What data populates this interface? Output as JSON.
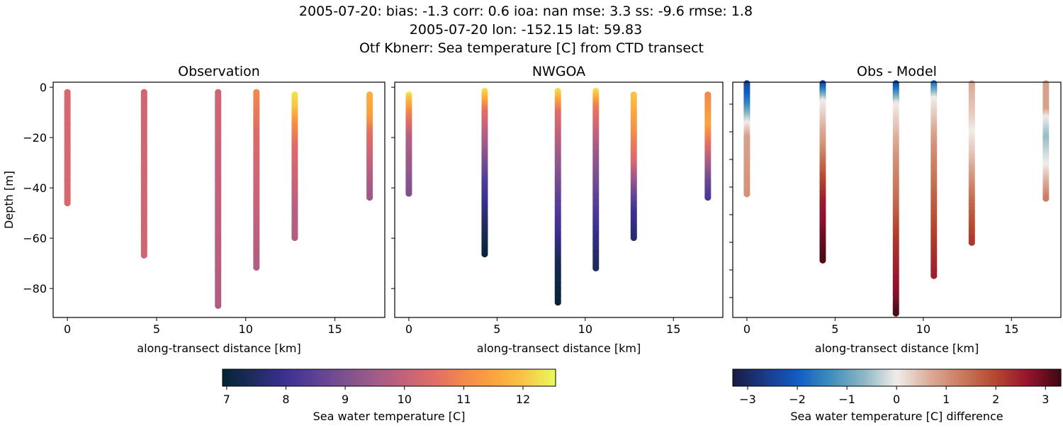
{
  "title_lines": [
    "2005-07-20: bias: -1.3  corr: 0.6  ioa: nan  mse: 3.3  ss: -9.6  rmse: 1.8",
    "2005-07-20 lon: -152.15 lat: 59.83",
    "Otf Kbnerr: Sea temperature [C] from CTD transect"
  ],
  "chart_data": [
    {
      "type": "scatter",
      "title": "Observation",
      "xlabel": "along-transect distance [km]",
      "ylabel": "Depth [m]",
      "xlim": [
        -0.8,
        17.8
      ],
      "ylim": [
        -91.5,
        2
      ],
      "xticks": [
        0,
        5,
        10,
        15
      ],
      "yticks": [
        0,
        -20,
        -40,
        -60,
        -80
      ],
      "show_ytick_labels": true,
      "colormap": "thermal",
      "color_range": [
        6.93,
        12.55
      ],
      "casts": [
        {
          "x": 0,
          "depth_top": -2,
          "depth_bottom": -46.5,
          "profile": [
            [
              -2,
              10.3
            ],
            [
              -46.5,
              10.3
            ]
          ]
        },
        {
          "x": 4.3,
          "depth_top": -2,
          "depth_bottom": -67,
          "profile": [
            [
              -2,
              10.2
            ],
            [
              -67,
              10.2
            ]
          ]
        },
        {
          "x": 8.45,
          "depth_top": -2,
          "depth_bottom": -87,
          "profile": [
            [
              -2,
              10.2
            ],
            [
              -40,
              10.0
            ],
            [
              -87,
              9.7
            ]
          ]
        },
        {
          "x": 10.6,
          "depth_top": -2,
          "depth_bottom": -72,
          "profile": [
            [
              -2,
              11.0
            ],
            [
              -20,
              10.4
            ],
            [
              -50,
              10.0
            ],
            [
              -72,
              9.7
            ]
          ]
        },
        {
          "x": 12.75,
          "depth_top": -3,
          "depth_bottom": -60,
          "profile": [
            [
              -3,
              12.3
            ],
            [
              -8,
              12.0
            ],
            [
              -15,
              11.1
            ],
            [
              -25,
              10.4
            ],
            [
              -50,
              9.8
            ],
            [
              -60,
              9.7
            ]
          ]
        },
        {
          "x": 16.95,
          "depth_top": -3,
          "depth_bottom": -44.5,
          "profile": [
            [
              -3,
              11.7
            ],
            [
              -12,
              11.4
            ],
            [
              -18,
              10.6
            ],
            [
              -30,
              10.0
            ],
            [
              -44.5,
              9.4
            ]
          ]
        }
      ]
    },
    {
      "type": "scatter",
      "title": "NWGOA",
      "xlabel": "along-transect distance [km]",
      "xlim": [
        -0.8,
        17.8
      ],
      "ylim": [
        -91.5,
        2
      ],
      "xticks": [
        0,
        5,
        10,
        15
      ],
      "yticks": [
        0,
        -20,
        -40,
        -60,
        -80
      ],
      "show_ytick_labels": false,
      "colormap": "thermal",
      "color_range": [
        6.93,
        12.55
      ],
      "casts": [
        {
          "x": 0,
          "depth_top": -3,
          "depth_bottom": -42.5,
          "profile": [
            [
              -3,
              12.3
            ],
            [
              -10,
              11.0
            ],
            [
              -20,
              9.8
            ],
            [
              -42.5,
              9.0
            ]
          ]
        },
        {
          "x": 4.3,
          "depth_top": -1.5,
          "depth_bottom": -67,
          "profile": [
            [
              -1.5,
              12.3
            ],
            [
              -10,
              10.5
            ],
            [
              -25,
              9.3
            ],
            [
              -38,
              8.3
            ],
            [
              -50,
              7.7
            ],
            [
              -67,
              7.0
            ]
          ]
        },
        {
          "x": 8.45,
          "depth_top": -1.5,
          "depth_bottom": -86,
          "profile": [
            [
              -1.5,
              12.3
            ],
            [
              -10,
              10.5
            ],
            [
              -30,
              9.3
            ],
            [
              -45,
              8.5
            ],
            [
              -58,
              8.0
            ],
            [
              -70,
              7.3
            ],
            [
              -86,
              7.0
            ]
          ]
        },
        {
          "x": 10.6,
          "depth_top": -1.5,
          "depth_bottom": -72,
          "profile": [
            [
              -1.5,
              12.3
            ],
            [
              -8,
              10.8
            ],
            [
              -25,
              9.5
            ],
            [
              -45,
              8.5
            ],
            [
              -60,
              7.8
            ],
            [
              -72,
              7.4
            ]
          ]
        },
        {
          "x": 12.75,
          "depth_top": -3,
          "depth_bottom": -60,
          "profile": [
            [
              -3,
              12.0
            ],
            [
              -15,
              11.3
            ],
            [
              -30,
              10.3
            ],
            [
              -40,
              9.0
            ],
            [
              -50,
              8.0
            ],
            [
              -60,
              7.6
            ]
          ]
        },
        {
          "x": 16.95,
          "depth_top": -3,
          "depth_bottom": -44.5,
          "profile": [
            [
              -3,
              11.0
            ],
            [
              -15,
              11.5
            ],
            [
              -25,
              10.3
            ],
            [
              -35,
              9.0
            ],
            [
              -44.5,
              8.2
            ]
          ]
        }
      ]
    },
    {
      "type": "scatter",
      "title": "Obs - Model",
      "xlabel": "along-transect distance [km]",
      "xlim": [
        -0.8,
        17.8
      ],
      "ylim": [
        -87.2,
        -2.05
      ],
      "xticks": [
        0,
        5,
        10,
        15
      ],
      "yticks": [
        -10,
        -20,
        -30,
        -40,
        -50,
        -60,
        -70,
        -80
      ],
      "show_ytick_labels": false,
      "colormap": "balance",
      "color_range": [
        -3.3,
        3.31
      ],
      "casts": [
        {
          "x": 0,
          "depth_top": -2.5,
          "depth_bottom": -42.6,
          "profile": [
            [
              -2.5,
              -2.5
            ],
            [
              -10,
              -1.5
            ],
            [
              -17,
              0
            ],
            [
              -22,
              0.8
            ],
            [
              -42.6,
              1.0
            ]
          ]
        },
        {
          "x": 4.3,
          "depth_top": -2.5,
          "depth_bottom": -67,
          "profile": [
            [
              -2.5,
              -2.5
            ],
            [
              -9,
              0
            ],
            [
              -25,
              1.0
            ],
            [
              -35,
              1.8
            ],
            [
              -45,
              2.5
            ],
            [
              -60,
              3.0
            ],
            [
              -67,
              3.2
            ]
          ]
        },
        {
          "x": 8.45,
          "depth_top": -2.5,
          "depth_bottom": -86,
          "profile": [
            [
              -2.5,
              -2.5
            ],
            [
              -10,
              0
            ],
            [
              -30,
              1.0
            ],
            [
              -45,
              1.5
            ],
            [
              -60,
              2.2
            ],
            [
              -80,
              2.8
            ],
            [
              -86,
              3.2
            ]
          ]
        },
        {
          "x": 10.6,
          "depth_top": -2.5,
          "depth_bottom": -72.3,
          "profile": [
            [
              -2.5,
              -1.8
            ],
            [
              -8,
              0
            ],
            [
              -25,
              1.0
            ],
            [
              -40,
              1.5
            ],
            [
              -55,
              2.0
            ],
            [
              -72.3,
              2.5
            ]
          ]
        },
        {
          "x": 12.75,
          "depth_top": -2.5,
          "depth_bottom": -60.3,
          "profile": [
            [
              -2.5,
              0.7
            ],
            [
              -15,
              0.3
            ],
            [
              -20,
              0
            ],
            [
              -30,
              0.5
            ],
            [
              -45,
              1.5
            ],
            [
              -60.3,
              2.2
            ]
          ]
        },
        {
          "x": 16.95,
          "depth_top": -2.5,
          "depth_bottom": -44.4,
          "profile": [
            [
              -2.5,
              0.8
            ],
            [
              -12,
              0.8
            ],
            [
              -15,
              0
            ],
            [
              -22,
              -0.6
            ],
            [
              -32,
              0
            ],
            [
              -38,
              0.6
            ],
            [
              -44.4,
              1.3
            ]
          ]
        }
      ]
    }
  ],
  "colorbars": [
    {
      "label": "Sea water temperature [C]",
      "colormap": "thermal",
      "range": [
        6.93,
        12.55
      ],
      "ticks": [
        7,
        8,
        9,
        10,
        11,
        12
      ],
      "tick_labels": [
        "7",
        "8",
        "9",
        "10",
        "11",
        "12"
      ]
    },
    {
      "label": "Sea water temperature [C] difference",
      "colormap": "balance",
      "range": [
        -3.3,
        3.31
      ],
      "ticks": [
        -3,
        -2,
        -1,
        0,
        1,
        2,
        3
      ],
      "tick_labels": [
        "−3",
        "−2",
        "−1",
        "0",
        "1",
        "2",
        "3"
      ]
    }
  ],
  "colormaps": {
    "thermal": [
      "#042333",
      "#1f2b5e",
      "#3a2f93",
      "#5a4094",
      "#7c5090",
      "#a05b88",
      "#c4627b",
      "#e06e66",
      "#f38a4a",
      "#fba53e",
      "#f9c747",
      "#e8fa5b"
    ],
    "balance": [
      "#181c43",
      "#1b3a8a",
      "#0f5fc4",
      "#3f8fbd",
      "#8db7c3",
      "#f1ecea",
      "#dcab98",
      "#c97a5d",
      "#b5472e",
      "#96132e",
      "#3c0912"
    ]
  }
}
